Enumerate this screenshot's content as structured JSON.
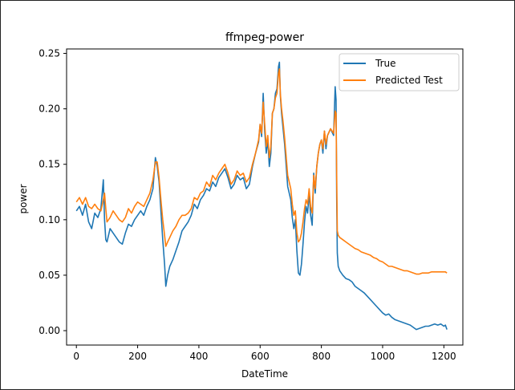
{
  "chart_data": {
    "type": "line",
    "title": "ffmpeg-power",
    "xlabel": "DateTime",
    "ylabel": "power",
    "xlim": [
      -32,
      1262
    ],
    "ylim": [
      -0.013,
      0.254
    ],
    "xticks": [
      0,
      200,
      400,
      600,
      800,
      1000,
      1200
    ],
    "yticks": [
      0.0,
      0.05,
      0.1,
      0.15,
      0.2,
      0.25
    ],
    "grid": false,
    "legend_position": "top-right",
    "series": [
      {
        "name": "True",
        "color": "#1f77b4",
        "x": [
          0,
          10,
          20,
          30,
          40,
          50,
          60,
          70,
          80,
          88,
          92,
          96,
          100,
          110,
          120,
          130,
          140,
          150,
          160,
          170,
          180,
          190,
          200,
          210,
          220,
          230,
          240,
          250,
          258,
          264,
          270,
          276,
          282,
          288,
          292,
          298,
          305,
          315,
          325,
          335,
          345,
          355,
          365,
          375,
          385,
          395,
          405,
          415,
          425,
          435,
          445,
          455,
          465,
          475,
          485,
          495,
          505,
          515,
          525,
          535,
          545,
          555,
          565,
          575,
          585,
          595,
          600,
          605,
          610,
          615,
          620,
          625,
          630,
          635,
          640,
          645,
          650,
          655,
          660,
          663,
          666,
          670,
          675,
          680,
          690,
          700,
          705,
          710,
          715,
          720,
          725,
          730,
          735,
          740,
          745,
          750,
          755,
          760,
          765,
          770,
          775,
          780,
          785,
          790,
          795,
          800,
          805,
          810,
          815,
          820,
          830,
          840,
          845,
          848,
          850,
          852,
          855,
          860,
          870,
          880,
          890,
          900,
          910,
          920,
          930,
          940,
          950,
          960,
          970,
          980,
          990,
          1000,
          1010,
          1020,
          1030,
          1040,
          1050,
          1060,
          1070,
          1080,
          1090,
          1100,
          1110,
          1120,
          1130,
          1140,
          1150,
          1160,
          1170,
          1180,
          1190,
          1200,
          1205,
          1210
        ],
        "y": [
          0.108,
          0.112,
          0.104,
          0.114,
          0.098,
          0.092,
          0.106,
          0.102,
          0.11,
          0.136,
          0.1,
          0.082,
          0.08,
          0.092,
          0.088,
          0.084,
          0.08,
          0.078,
          0.088,
          0.096,
          0.094,
          0.1,
          0.104,
          0.108,
          0.104,
          0.112,
          0.118,
          0.128,
          0.156,
          0.148,
          0.134,
          0.108,
          0.082,
          0.06,
          0.04,
          0.05,
          0.058,
          0.064,
          0.072,
          0.08,
          0.09,
          0.094,
          0.098,
          0.104,
          0.114,
          0.11,
          0.118,
          0.122,
          0.128,
          0.126,
          0.134,
          0.13,
          0.138,
          0.142,
          0.146,
          0.138,
          0.128,
          0.132,
          0.14,
          0.136,
          0.138,
          0.128,
          0.132,
          0.148,
          0.16,
          0.17,
          0.186,
          0.175,
          0.214,
          0.18,
          0.16,
          0.172,
          0.148,
          0.16,
          0.196,
          0.2,
          0.214,
          0.218,
          0.238,
          0.242,
          0.212,
          0.196,
          0.182,
          0.168,
          0.13,
          0.118,
          0.102,
          0.092,
          0.1,
          0.072,
          0.052,
          0.05,
          0.06,
          0.078,
          0.098,
          0.112,
          0.106,
          0.124,
          0.104,
          0.095,
          0.142,
          0.124,
          0.148,
          0.16,
          0.168,
          0.172,
          0.16,
          0.18,
          0.164,
          0.176,
          0.182,
          0.176,
          0.22,
          0.208,
          0.12,
          0.07,
          0.058,
          0.054,
          0.05,
          0.047,
          0.046,
          0.044,
          0.04,
          0.038,
          0.036,
          0.034,
          0.031,
          0.028,
          0.025,
          0.022,
          0.019,
          0.016,
          0.014,
          0.015,
          0.012,
          0.01,
          0.009,
          0.008,
          0.007,
          0.006,
          0.005,
          0.003,
          0.001,
          0.002,
          0.003,
          0.004,
          0.004,
          0.005,
          0.006,
          0.005,
          0.006,
          0.004,
          0.005,
          0.001
        ]
      },
      {
        "name": "Predicted Test",
        "color": "#ff7f0e",
        "x": [
          0,
          10,
          20,
          30,
          40,
          50,
          60,
          70,
          80,
          88,
          92,
          96,
          100,
          110,
          120,
          130,
          140,
          150,
          160,
          170,
          180,
          190,
          200,
          210,
          220,
          230,
          240,
          250,
          258,
          264,
          270,
          276,
          282,
          288,
          292,
          298,
          305,
          315,
          325,
          335,
          345,
          355,
          365,
          375,
          385,
          395,
          405,
          415,
          425,
          435,
          445,
          455,
          465,
          475,
          485,
          495,
          505,
          515,
          525,
          535,
          545,
          555,
          565,
          575,
          585,
          595,
          600,
          605,
          610,
          615,
          620,
          625,
          630,
          635,
          640,
          645,
          650,
          655,
          660,
          663,
          666,
          670,
          675,
          680,
          690,
          700,
          705,
          710,
          715,
          720,
          725,
          730,
          735,
          740,
          745,
          750,
          755,
          760,
          765,
          770,
          775,
          780,
          785,
          790,
          795,
          800,
          805,
          810,
          815,
          820,
          830,
          840,
          845,
          848,
          850,
          852,
          855,
          860,
          870,
          880,
          890,
          900,
          910,
          920,
          930,
          940,
          950,
          960,
          970,
          980,
          990,
          1000,
          1010,
          1020,
          1030,
          1040,
          1050,
          1060,
          1070,
          1080,
          1090,
          1100,
          1110,
          1120,
          1130,
          1140,
          1150,
          1160,
          1170,
          1180,
          1190,
          1200,
          1205,
          1210
        ],
        "y": [
          0.116,
          0.12,
          0.114,
          0.12,
          0.112,
          0.11,
          0.114,
          0.11,
          0.108,
          0.118,
          0.124,
          0.11,
          0.098,
          0.102,
          0.108,
          0.104,
          0.1,
          0.098,
          0.102,
          0.11,
          0.106,
          0.112,
          0.116,
          0.114,
          0.112,
          0.118,
          0.124,
          0.136,
          0.152,
          0.152,
          0.138,
          0.118,
          0.1,
          0.086,
          0.076,
          0.08,
          0.084,
          0.09,
          0.094,
          0.1,
          0.104,
          0.104,
          0.106,
          0.11,
          0.12,
          0.118,
          0.124,
          0.126,
          0.134,
          0.13,
          0.14,
          0.136,
          0.142,
          0.146,
          0.15,
          0.142,
          0.132,
          0.136,
          0.144,
          0.14,
          0.142,
          0.134,
          0.138,
          0.15,
          0.16,
          0.172,
          0.186,
          0.178,
          0.206,
          0.186,
          0.166,
          0.176,
          0.156,
          0.166,
          0.196,
          0.2,
          0.21,
          0.214,
          0.232,
          0.236,
          0.214,
          0.2,
          0.188,
          0.174,
          0.14,
          0.128,
          0.114,
          0.104,
          0.108,
          0.088,
          0.08,
          0.082,
          0.088,
          0.098,
          0.11,
          0.118,
          0.114,
          0.128,
          0.112,
          0.106,
          0.14,
          0.128,
          0.148,
          0.16,
          0.168,
          0.172,
          0.164,
          0.18,
          0.168,
          0.176,
          0.182,
          0.178,
          0.198,
          0.196,
          0.14,
          0.09,
          0.086,
          0.084,
          0.082,
          0.08,
          0.078,
          0.076,
          0.074,
          0.073,
          0.071,
          0.07,
          0.069,
          0.068,
          0.066,
          0.065,
          0.063,
          0.062,
          0.06,
          0.058,
          0.058,
          0.057,
          0.056,
          0.055,
          0.054,
          0.054,
          0.053,
          0.052,
          0.051,
          0.051,
          0.052,
          0.052,
          0.052,
          0.053,
          0.053,
          0.053,
          0.053,
          0.053,
          0.053,
          0.052
        ]
      }
    ]
  }
}
